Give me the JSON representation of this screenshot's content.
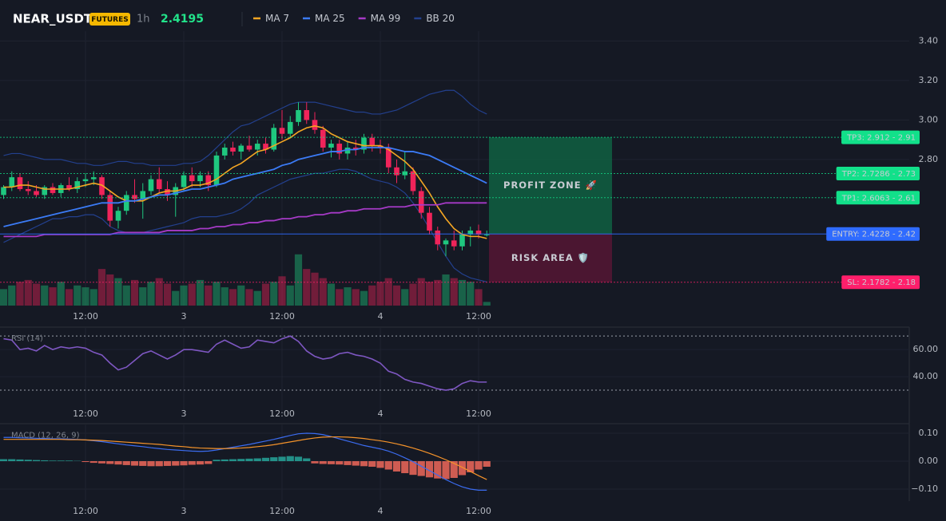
{
  "header": {
    "symbol": "NEAR_USDT",
    "badge": "FUTURES",
    "interval": "1h",
    "price": 2.4195
  },
  "chart_data": [
    {
      "type": "candlestick",
      "x": [
        null,
        null,
        null,
        null,
        null,
        null,
        null,
        null,
        null,
        null,
        "12:00",
        null,
        null,
        null,
        null,
        null,
        null,
        null,
        null,
        null,
        null,
        null,
        "3",
        null,
        null,
        null,
        null,
        null,
        null,
        null,
        null,
        null,
        null,
        null,
        "12:00",
        null,
        null,
        null,
        null,
        null,
        null,
        null,
        null,
        null,
        null,
        null,
        "4",
        null,
        null,
        null,
        null,
        null,
        null,
        null,
        null,
        null,
        null,
        null,
        "12:00",
        null
      ],
      "open": [
        2.62,
        2.66,
        2.71,
        2.65,
        2.64,
        2.62,
        2.66,
        2.63,
        2.67,
        2.65,
        2.69,
        2.7,
        2.71,
        2.62,
        2.49,
        2.54,
        2.62,
        2.6,
        2.64,
        2.7,
        2.65,
        2.62,
        2.66,
        2.72,
        2.69,
        2.72,
        2.67,
        2.82,
        2.86,
        2.84,
        2.87,
        2.85,
        2.88,
        2.85,
        2.96,
        2.93,
        2.99,
        3.05,
        3.0,
        2.95,
        2.86,
        2.88,
        2.83,
        2.86,
        2.85,
        2.91,
        2.87,
        2.86,
        2.76,
        2.72,
        2.74,
        2.64,
        2.53,
        2.44,
        2.37,
        2.39,
        2.36,
        2.42,
        2.44,
        2.42
      ],
      "high": [
        2.67,
        2.74,
        2.73,
        2.69,
        2.67,
        2.67,
        2.68,
        2.68,
        2.71,
        2.71,
        2.73,
        2.74,
        2.72,
        2.64,
        2.56,
        2.64,
        2.7,
        2.68,
        2.72,
        2.76,
        2.69,
        2.68,
        2.74,
        2.76,
        2.74,
        2.74,
        2.84,
        2.88,
        2.89,
        2.88,
        2.92,
        2.9,
        2.91,
        2.98,
        3.05,
        3.02,
        3.09,
        3.09,
        3.04,
        2.97,
        2.9,
        2.9,
        2.89,
        2.9,
        2.93,
        2.93,
        2.9,
        2.88,
        2.8,
        2.84,
        2.76,
        2.66,
        2.56,
        2.46,
        2.4,
        2.44,
        2.44,
        2.46,
        2.47,
        2.44
      ],
      "low": [
        2.6,
        2.64,
        2.64,
        2.62,
        2.61,
        2.6,
        2.62,
        2.61,
        2.64,
        2.63,
        2.66,
        2.67,
        2.6,
        2.46,
        2.45,
        2.52,
        2.58,
        2.5,
        2.62,
        2.63,
        2.59,
        2.51,
        2.64,
        2.66,
        2.66,
        2.64,
        2.66,
        2.8,
        2.82,
        2.8,
        2.84,
        2.82,
        2.83,
        2.84,
        2.9,
        2.91,
        2.97,
        2.98,
        2.93,
        2.84,
        2.81,
        2.8,
        2.8,
        2.82,
        2.83,
        2.84,
        2.83,
        2.73,
        2.68,
        2.7,
        2.62,
        2.5,
        2.42,
        2.34,
        2.31,
        2.34,
        2.34,
        2.36,
        2.4,
        2.41
      ],
      "close": [
        2.66,
        2.71,
        2.65,
        2.64,
        2.62,
        2.66,
        2.63,
        2.67,
        2.65,
        2.69,
        2.7,
        2.71,
        2.62,
        2.49,
        2.54,
        2.62,
        2.6,
        2.64,
        2.7,
        2.65,
        2.62,
        2.66,
        2.72,
        2.69,
        2.72,
        2.67,
        2.82,
        2.86,
        2.84,
        2.87,
        2.85,
        2.88,
        2.85,
        2.96,
        2.93,
        2.99,
        3.05,
        3.0,
        2.95,
        2.86,
        2.88,
        2.83,
        2.86,
        2.85,
        2.91,
        2.87,
        2.86,
        2.76,
        2.72,
        2.74,
        2.64,
        2.53,
        2.44,
        2.37,
        2.39,
        2.36,
        2.42,
        2.44,
        2.42,
        2.42
      ],
      "up_color": "#1fc77f",
      "down_color": "#f0245a",
      "ylim": [
        2.06,
        3.45
      ],
      "yticks": [
        {
          "value": 3.4,
          "label": "3.40"
        },
        {
          "value": 3.2,
          "label": "3.20"
        },
        {
          "value": 3,
          "label": "3.00"
        },
        {
          "value": 2.8,
          "label": "2.80"
        }
      ],
      "grid": true,
      "volume": {
        "values": [
          18,
          22,
          26,
          28,
          24,
          22,
          20,
          26,
          18,
          22,
          20,
          18,
          40,
          34,
          30,
          22,
          28,
          20,
          26,
          30,
          24,
          16,
          22,
          24,
          28,
          22,
          26,
          20,
          18,
          22,
          18,
          16,
          24,
          26,
          32,
          22,
          56,
          40,
          36,
          30,
          24,
          18,
          20,
          18,
          16,
          22,
          26,
          30,
          22,
          18,
          24,
          30,
          26,
          28,
          34,
          30,
          28,
          26,
          18,
          4
        ],
        "y2lim": [
          0,
          300
        ]
      },
      "series": [
        {
          "name": "MA 7",
          "color": "#f5a623",
          "values": [
            2.66,
            2.66,
            2.67,
            2.67,
            2.66,
            2.65,
            2.65,
            2.65,
            2.65,
            2.66,
            2.67,
            2.68,
            2.67,
            2.64,
            2.61,
            2.59,
            2.59,
            2.59,
            2.61,
            2.63,
            2.64,
            2.64,
            2.65,
            2.67,
            2.67,
            2.68,
            2.7,
            2.73,
            2.76,
            2.78,
            2.81,
            2.84,
            2.85,
            2.87,
            2.89,
            2.91,
            2.94,
            2.96,
            2.97,
            2.96,
            2.93,
            2.91,
            2.89,
            2.88,
            2.87,
            2.87,
            2.87,
            2.85,
            2.82,
            2.79,
            2.75,
            2.69,
            2.63,
            2.56,
            2.5,
            2.45,
            2.42,
            2.41,
            2.41,
            2.4
          ]
        },
        {
          "name": "MA 25",
          "color": "#3b7bf6",
          "values": [
            2.46,
            2.47,
            2.48,
            2.49,
            2.5,
            2.51,
            2.52,
            2.53,
            2.54,
            2.55,
            2.56,
            2.57,
            2.58,
            2.58,
            2.58,
            2.59,
            2.59,
            2.6,
            2.61,
            2.62,
            2.62,
            2.63,
            2.64,
            2.65,
            2.65,
            2.66,
            2.67,
            2.68,
            2.7,
            2.71,
            2.72,
            2.73,
            2.74,
            2.75,
            2.77,
            2.78,
            2.8,
            2.81,
            2.82,
            2.83,
            2.84,
            2.84,
            2.85,
            2.85,
            2.86,
            2.86,
            2.86,
            2.86,
            2.85,
            2.84,
            2.84,
            2.83,
            2.82,
            2.8,
            2.78,
            2.76,
            2.74,
            2.72,
            2.7,
            2.68
          ]
        },
        {
          "name": "MA 99",
          "color": "#a63ac7",
          "values": [
            2.41,
            2.41,
            2.41,
            2.41,
            2.41,
            2.42,
            2.42,
            2.42,
            2.42,
            2.42,
            2.42,
            2.42,
            2.42,
            2.42,
            2.43,
            2.43,
            2.43,
            2.43,
            2.43,
            2.43,
            2.44,
            2.44,
            2.44,
            2.44,
            2.45,
            2.45,
            2.46,
            2.46,
            2.47,
            2.47,
            2.48,
            2.48,
            2.49,
            2.49,
            2.5,
            2.5,
            2.51,
            2.51,
            2.52,
            2.52,
            2.53,
            2.53,
            2.54,
            2.54,
            2.55,
            2.55,
            2.55,
            2.56,
            2.56,
            2.56,
            2.57,
            2.57,
            2.57,
            2.57,
            2.58,
            2.58,
            2.58,
            2.58,
            2.58,
            2.58
          ]
        },
        {
          "name": "BB 20",
          "color": "#23408e",
          "upper": [
            2.82,
            2.83,
            2.83,
            2.82,
            2.81,
            2.8,
            2.8,
            2.8,
            2.79,
            2.78,
            2.78,
            2.77,
            2.77,
            2.78,
            2.79,
            2.79,
            2.78,
            2.78,
            2.77,
            2.77,
            2.77,
            2.77,
            2.78,
            2.78,
            2.79,
            2.82,
            2.86,
            2.9,
            2.94,
            2.97,
            2.98,
            3.0,
            3.02,
            3.04,
            3.06,
            3.08,
            3.09,
            3.09,
            3.09,
            3.08,
            3.07,
            3.06,
            3.05,
            3.04,
            3.04,
            3.03,
            3.03,
            3.04,
            3.05,
            3.07,
            3.09,
            3.11,
            3.13,
            3.14,
            3.15,
            3.15,
            3.12,
            3.08,
            3.05,
            3.03
          ],
          "lower": [
            2.38,
            2.4,
            2.42,
            2.44,
            2.46,
            2.48,
            2.5,
            2.5,
            2.51,
            2.51,
            2.52,
            2.52,
            2.5,
            2.46,
            2.44,
            2.43,
            2.43,
            2.43,
            2.44,
            2.45,
            2.46,
            2.47,
            2.48,
            2.5,
            2.51,
            2.51,
            2.51,
            2.52,
            2.53,
            2.55,
            2.58,
            2.62,
            2.64,
            2.66,
            2.68,
            2.7,
            2.71,
            2.72,
            2.73,
            2.73,
            2.74,
            2.75,
            2.75,
            2.74,
            2.72,
            2.7,
            2.69,
            2.68,
            2.66,
            2.63,
            2.58,
            2.52,
            2.45,
            2.38,
            2.31,
            2.25,
            2.22,
            2.2,
            2.19,
            2.18
          ]
        }
      ],
      "levels": [
        {
          "label": "TP3: 2.912 - 2.91",
          "value": 2.912,
          "color": "#12e08a",
          "text_color": "#06140d",
          "style": "dotted"
        },
        {
          "label": "TP2: 2.7286 - 2.73",
          "value": 2.7286,
          "color": "#12e08a",
          "text_color": "#06140d",
          "style": "dotted"
        },
        {
          "label": "TP1: 2.6063 - 2.61",
          "value": 2.6063,
          "color": "#12e08a",
          "text_color": "#06140d",
          "style": "dotted"
        },
        {
          "label": "ENTRY: 2.4228 - 2.42",
          "value": 2.4228,
          "color": "#2f6bff",
          "text_color": "#ffffff",
          "style": "solid"
        },
        {
          "label": "SL: 2.1782 - 2.18",
          "value": 2.1782,
          "color": "#ff1f6b",
          "text_color": "#ffffff",
          "style": "dotted"
        }
      ],
      "zones": [
        {
          "label": "PROFIT ZONE 🚀",
          "from": 2.4228,
          "to": 2.912,
          "color": "#0f6a45",
          "text_color": "#3ce6a0"
        },
        {
          "label": "RISK AREA 🛡️",
          "from": 2.1782,
          "to": 2.4228,
          "color": "#5e1636",
          "text_color": "#ff2d6f"
        }
      ]
    },
    {
      "type": "line",
      "title": "RSI (14)",
      "x": [
        null,
        null,
        null,
        null,
        null,
        null,
        null,
        null,
        null,
        null,
        "12:00",
        null,
        null,
        null,
        null,
        null,
        null,
        null,
        null,
        null,
        null,
        null,
        "3",
        null,
        null,
        null,
        null,
        null,
        null,
        null,
        null,
        null,
        null,
        null,
        "12:00",
        null,
        null,
        null,
        null,
        null,
        null,
        null,
        null,
        null,
        null,
        null,
        "4",
        null,
        null,
        null,
        null,
        null,
        null,
        null,
        null,
        null,
        null,
        null,
        "12:00",
        null
      ],
      "values": [
        68,
        67,
        60,
        61,
        59,
        63,
        60,
        62,
        61,
        62,
        61,
        58,
        56,
        50,
        45,
        47,
        52,
        57,
        59,
        56,
        53,
        56,
        60,
        60,
        59,
        58,
        64,
        67,
        64,
        61,
        62,
        67,
        66,
        65,
        68,
        70,
        66,
        59,
        55,
        53,
        54,
        57,
        58,
        56,
        55,
        53,
        50,
        44,
        42,
        38,
        36,
        35,
        33,
        31,
        30,
        31,
        35,
        37,
        36,
        36
      ],
      "color": "#7e57c2",
      "levels": [
        70,
        30
      ],
      "ylim": [
        15,
        76
      ],
      "yticks": [
        {
          "value": 60,
          "label": "60.00"
        },
        {
          "value": 40,
          "label": "40.00"
        }
      ]
    },
    {
      "type": "macd",
      "title": "MACD (12, 26, 9)",
      "x": [
        null,
        null,
        null,
        null,
        null,
        null,
        null,
        null,
        null,
        null,
        "12:00",
        null,
        null,
        null,
        null,
        null,
        null,
        null,
        null,
        null,
        null,
        null,
        "3",
        null,
        null,
        null,
        null,
        null,
        null,
        null,
        null,
        null,
        null,
        null,
        "12:00",
        null,
        null,
        null,
        null,
        null,
        null,
        null,
        null,
        null,
        null,
        null,
        "4",
        null,
        null,
        null,
        null,
        null,
        null,
        null,
        null,
        null,
        null,
        null,
        "12:00",
        null
      ],
      "series": [
        {
          "color": "#3b6cf0",
          "values": [
            0.085,
            0.085,
            0.084,
            0.083,
            0.082,
            0.081,
            0.08,
            0.08,
            0.079,
            0.078,
            0.076,
            0.073,
            0.07,
            0.066,
            0.062,
            0.058,
            0.055,
            0.052,
            0.048,
            0.045,
            0.042,
            0.04,
            0.038,
            0.036,
            0.035,
            0.036,
            0.04,
            0.045,
            0.05,
            0.055,
            0.06,
            0.066,
            0.072,
            0.078,
            0.085,
            0.092,
            0.098,
            0.1,
            0.099,
            0.095,
            0.088,
            0.08,
            0.072,
            0.064,
            0.056,
            0.05,
            0.044,
            0.036,
            0.025,
            0.012,
            -0.002,
            -0.018,
            -0.034,
            -0.05,
            -0.066,
            -0.08,
            -0.092,
            -0.1,
            -0.104,
            -0.104
          ]
        },
        {
          "color": "#f5932a",
          "values": [
            0.078,
            0.078,
            0.078,
            0.078,
            0.078,
            0.078,
            0.078,
            0.078,
            0.077,
            0.077,
            0.076,
            0.075,
            0.074,
            0.072,
            0.07,
            0.068,
            0.066,
            0.064,
            0.062,
            0.06,
            0.057,
            0.054,
            0.052,
            0.049,
            0.047,
            0.046,
            0.045,
            0.045,
            0.046,
            0.047,
            0.049,
            0.052,
            0.055,
            0.059,
            0.064,
            0.069,
            0.074,
            0.079,
            0.083,
            0.086,
            0.087,
            0.087,
            0.086,
            0.084,
            0.081,
            0.077,
            0.073,
            0.068,
            0.062,
            0.055,
            0.047,
            0.038,
            0.028,
            0.017,
            0.005,
            -0.008,
            -0.022,
            -0.037,
            -0.052,
            -0.066
          ]
        }
      ],
      "histogram": {
        "up_color": "#26a69a",
        "down_color": "#f0685a",
        "values": [
          0.007,
          0.007,
          0.006,
          0.005,
          0.004,
          0.003,
          0.002,
          0.002,
          0.002,
          0.001,
          -0.003,
          -0.006,
          -0.008,
          -0.01,
          -0.012,
          -0.014,
          -0.016,
          -0.017,
          -0.018,
          -0.018,
          -0.017,
          -0.016,
          -0.015,
          -0.013,
          -0.012,
          -0.01,
          0.005,
          0.006,
          0.007,
          0.008,
          0.009,
          0.01,
          0.012,
          0.014,
          0.016,
          0.018,
          0.016,
          0.01,
          -0.008,
          -0.01,
          -0.011,
          -0.012,
          -0.014,
          -0.016,
          -0.018,
          -0.02,
          -0.024,
          -0.03,
          -0.037,
          -0.043,
          -0.049,
          -0.053,
          -0.058,
          -0.062,
          -0.064,
          -0.06,
          -0.05,
          -0.04,
          -0.03,
          -0.02
        ]
      },
      "ylim": [
        -0.14,
        0.13
      ],
      "yticks": [
        {
          "value": 0.1,
          "label": "0.10"
        },
        {
          "value": 0,
          "label": "0.00"
        },
        {
          "value": -0.1,
          "label": "−0.10"
        }
      ]
    }
  ]
}
